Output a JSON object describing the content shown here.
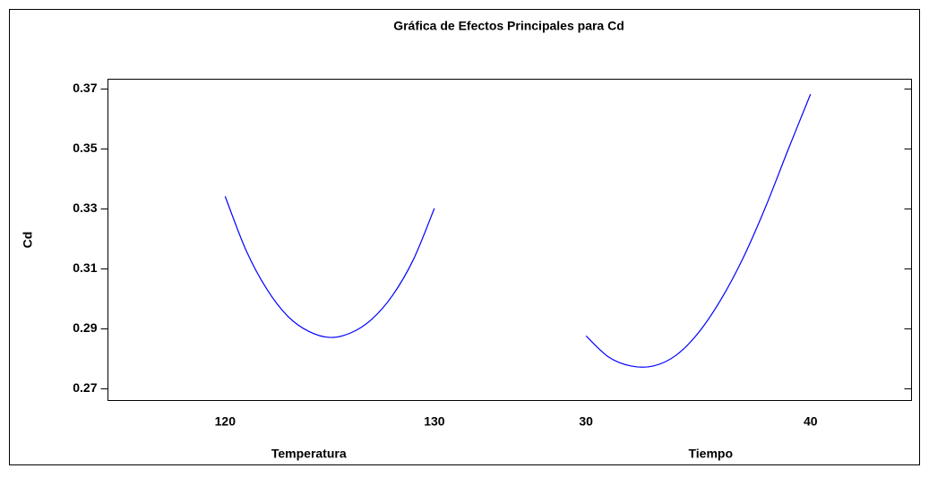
{
  "chart_data": {
    "type": "line",
    "title": "Gráfica de Efectos Principales para Cd",
    "ylabel": "Cd",
    "color": "#0000ff",
    "ylim": [
      0.266,
      0.373
    ],
    "yticks": [
      0.27,
      0.29,
      0.31,
      0.33,
      0.35,
      0.37
    ],
    "panels": [
      {
        "xlabel": "Temperatura",
        "xlim": [
          114.4,
          133.6
        ],
        "xticks": [
          120,
          130
        ],
        "x": [
          120,
          121,
          122,
          123,
          124,
          125,
          126,
          127,
          128,
          129,
          130
        ],
        "values": [
          0.334,
          0.316,
          0.303,
          0.294,
          0.289,
          0.287,
          0.2885,
          0.293,
          0.301,
          0.313,
          0.33
        ]
      },
      {
        "xlabel": "Tiempo",
        "xlim": [
          26.6,
          44.5
        ],
        "xticks": [
          30,
          40
        ],
        "x": [
          30,
          31,
          32,
          33,
          34,
          35,
          36,
          37,
          38,
          39,
          40
        ],
        "values": [
          0.2875,
          0.2805,
          0.2775,
          0.2775,
          0.281,
          0.2885,
          0.2995,
          0.3135,
          0.3305,
          0.3495,
          0.368
        ]
      }
    ]
  }
}
